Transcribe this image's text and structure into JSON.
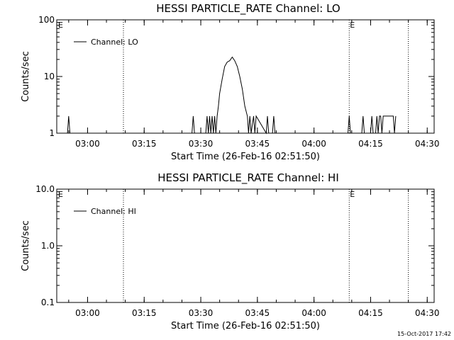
{
  "footer_timestamp": "15-Oct-2017 17:42",
  "chart_data": [
    {
      "type": "line",
      "title": "HESSI PARTICLE_RATE Channel: LO",
      "xlabel": "Start Time (26-Feb-16 02:51:50)",
      "ylabel": "Counts/sec",
      "yscale": "log",
      "ylim": [
        1,
        100
      ],
      "y_ticks": [
        "1",
        "10",
        "100"
      ],
      "xlim_minutes_after_start": [
        0,
        100
      ],
      "x_ticks": [
        "03:00",
        "03:15",
        "03:30",
        "03:45",
        "04:00",
        "04:15",
        "04:30"
      ],
      "legend": "top-left",
      "grid": false,
      "marker_label": "E",
      "series": [
        {
          "name": "Channel: LO",
          "x": [
            "02:54:40",
            "02:55:00",
            "02:55:20",
            "03:27:40",
            "03:28:00",
            "03:28:20",
            "03:31:20",
            "03:31:40",
            "03:32:00",
            "03:32:20",
            "03:32:40",
            "03:33:00",
            "03:33:20",
            "03:33:40",
            "03:34:00",
            "03:34:20",
            "03:34:40",
            "03:35:00",
            "03:35:40",
            "03:36:20",
            "03:37:00",
            "03:37:40",
            "03:38:20",
            "03:39:00",
            "03:39:40",
            "03:40:20",
            "03:41:00",
            "03:41:40",
            "03:42:20",
            "03:42:40",
            "03:43:00",
            "03:43:20",
            "03:44:00",
            "03:44:20",
            "03:44:40",
            "03:47:20",
            "03:47:40",
            "03:48:00",
            "03:49:00",
            "03:49:20",
            "03:49:40",
            "04:09:00",
            "04:09:20",
            "04:09:40",
            "04:12:40",
            "04:13:00",
            "04:13:20",
            "04:15:00",
            "04:15:20",
            "04:15:40",
            "04:16:20",
            "04:16:40",
            "04:17:00",
            "04:17:20",
            "04:17:40",
            "04:18:00",
            "04:18:20",
            "04:18:40",
            "04:19:00",
            "04:19:20",
            "04:19:40",
            "04:20:00",
            "04:20:20",
            "04:20:40",
            "04:21:00",
            "04:21:20",
            "04:21:40"
          ],
          "y": [
            1,
            2,
            1,
            1,
            2,
            1,
            1,
            2,
            1,
            2,
            1,
            2,
            1,
            2,
            1,
            2,
            3,
            5,
            9,
            15,
            18,
            19,
            22,
            19,
            15,
            10,
            6,
            3,
            2,
            1,
            2,
            1,
            2,
            1,
            2,
            1,
            2,
            1,
            1,
            2,
            1,
            1,
            2,
            1,
            1,
            2,
            1,
            1,
            2,
            1,
            1,
            2,
            1,
            2,
            2,
            1,
            2,
            2,
            2,
            2,
            2,
            2,
            2,
            2,
            2,
            1,
            2
          ]
        }
      ]
    },
    {
      "type": "line",
      "title": "HESSI PARTICLE_RATE Channel: HI",
      "xlabel": "Start Time (26-Feb-16 02:51:50)",
      "ylabel": "Counts/sec",
      "yscale": "log",
      "ylim": [
        0.1,
        10
      ],
      "y_ticks": [
        "0.1",
        "1.0",
        "10.0"
      ],
      "xlim_minutes_after_start": [
        0,
        100
      ],
      "x_ticks": [
        "03:00",
        "03:15",
        "03:30",
        "03:45",
        "04:00",
        "04:15",
        "04:30"
      ],
      "legend": "top-left",
      "grid": false,
      "marker_label": "E",
      "series": [
        {
          "name": "Channel: HI",
          "x": [],
          "y": []
        }
      ]
    }
  ]
}
